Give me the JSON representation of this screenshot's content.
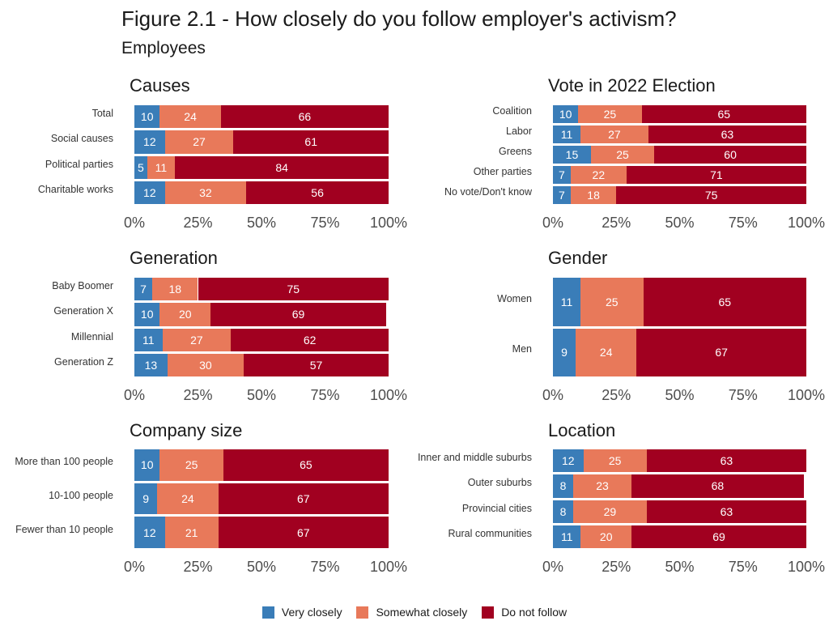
{
  "title": "Figure 2.1 - How closely do you follow employer's activism?",
  "subtitle": "Employees",
  "colors": {
    "very_closely": "#3a7db8",
    "somewhat_closely": "#e8795a",
    "do_not_follow": "#a10020"
  },
  "legend": {
    "very_closely": "Very closely",
    "somewhat_closely": "Somewhat closely",
    "do_not_follow": "Do not follow"
  },
  "chart_data": [
    {
      "type": "bar",
      "stacked": true,
      "orientation": "horizontal",
      "title": "Causes",
      "xlim": [
        0,
        100
      ],
      "xticks": [
        "0%",
        "25%",
        "50%",
        "75%",
        "100%"
      ],
      "categories": [
        "Total",
        "Social causes",
        "Political parties",
        "Charitable works"
      ],
      "series": [
        {
          "name": "Very closely",
          "values": [
            10,
            12,
            5,
            12
          ]
        },
        {
          "name": "Somewhat closely",
          "values": [
            24,
            27,
            11,
            32
          ]
        },
        {
          "name": "Do not follow",
          "values": [
            66,
            61,
            84,
            56
          ]
        }
      ]
    },
    {
      "type": "bar",
      "stacked": true,
      "orientation": "horizontal",
      "title": "Vote in 2022 Election",
      "xlim": [
        0,
        100
      ],
      "xticks": [
        "0%",
        "25%",
        "50%",
        "75%",
        "100%"
      ],
      "categories": [
        "Coalition",
        "Labor",
        "Greens",
        "Other parties",
        "No vote/Don't know"
      ],
      "series": [
        {
          "name": "Very closely",
          "values": [
            10,
            11,
            15,
            7,
            7
          ]
        },
        {
          "name": "Somewhat closely",
          "values": [
            25,
            27,
            25,
            22,
            18
          ]
        },
        {
          "name": "Do not follow",
          "values": [
            65,
            63,
            60,
            71,
            75
          ]
        }
      ]
    },
    {
      "type": "bar",
      "stacked": true,
      "orientation": "horizontal",
      "title": "Generation",
      "xlim": [
        0,
        100
      ],
      "xticks": [
        "0%",
        "25%",
        "50%",
        "75%",
        "100%"
      ],
      "categories": [
        "Baby Boomer",
        "Generation X",
        "Millennial",
        "Generation Z"
      ],
      "series": [
        {
          "name": "Very closely",
          "values": [
            7,
            10,
            11,
            13
          ]
        },
        {
          "name": "Somewhat closely",
          "values": [
            18,
            20,
            27,
            30
          ]
        },
        {
          "name": "Do not follow",
          "values": [
            75,
            69,
            62,
            57
          ]
        }
      ]
    },
    {
      "type": "bar",
      "stacked": true,
      "orientation": "horizontal",
      "title": "Gender",
      "xlim": [
        0,
        100
      ],
      "xticks": [
        "0%",
        "25%",
        "50%",
        "75%",
        "100%"
      ],
      "categories": [
        "Women",
        "Men"
      ],
      "series": [
        {
          "name": "Very closely",
          "values": [
            11,
            9
          ]
        },
        {
          "name": "Somewhat closely",
          "values": [
            25,
            24
          ]
        },
        {
          "name": "Do not follow",
          "values": [
            65,
            67
          ]
        }
      ]
    },
    {
      "type": "bar",
      "stacked": true,
      "orientation": "horizontal",
      "title": "Company size",
      "xlim": [
        0,
        100
      ],
      "xticks": [
        "0%",
        "25%",
        "50%",
        "75%",
        "100%"
      ],
      "categories": [
        "More than 100 people",
        "10-100 people",
        "Fewer than 10 people"
      ],
      "series": [
        {
          "name": "Very closely",
          "values": [
            10,
            9,
            12
          ]
        },
        {
          "name": "Somewhat closely",
          "values": [
            25,
            24,
            21
          ]
        },
        {
          "name": "Do not follow",
          "values": [
            65,
            67,
            67
          ]
        }
      ]
    },
    {
      "type": "bar",
      "stacked": true,
      "orientation": "horizontal",
      "title": "Location",
      "xlim": [
        0,
        100
      ],
      "xticks": [
        "0%",
        "25%",
        "50%",
        "75%",
        "100%"
      ],
      "categories": [
        "Inner and middle suburbs",
        "Outer suburbs",
        "Provincial cities",
        "Rural communities"
      ],
      "series": [
        {
          "name": "Very closely",
          "values": [
            12,
            8,
            8,
            11
          ]
        },
        {
          "name": "Somewhat closely",
          "values": [
            25,
            23,
            29,
            20
          ]
        },
        {
          "name": "Do not follow",
          "values": [
            63,
            68,
            63,
            69
          ]
        }
      ]
    }
  ]
}
